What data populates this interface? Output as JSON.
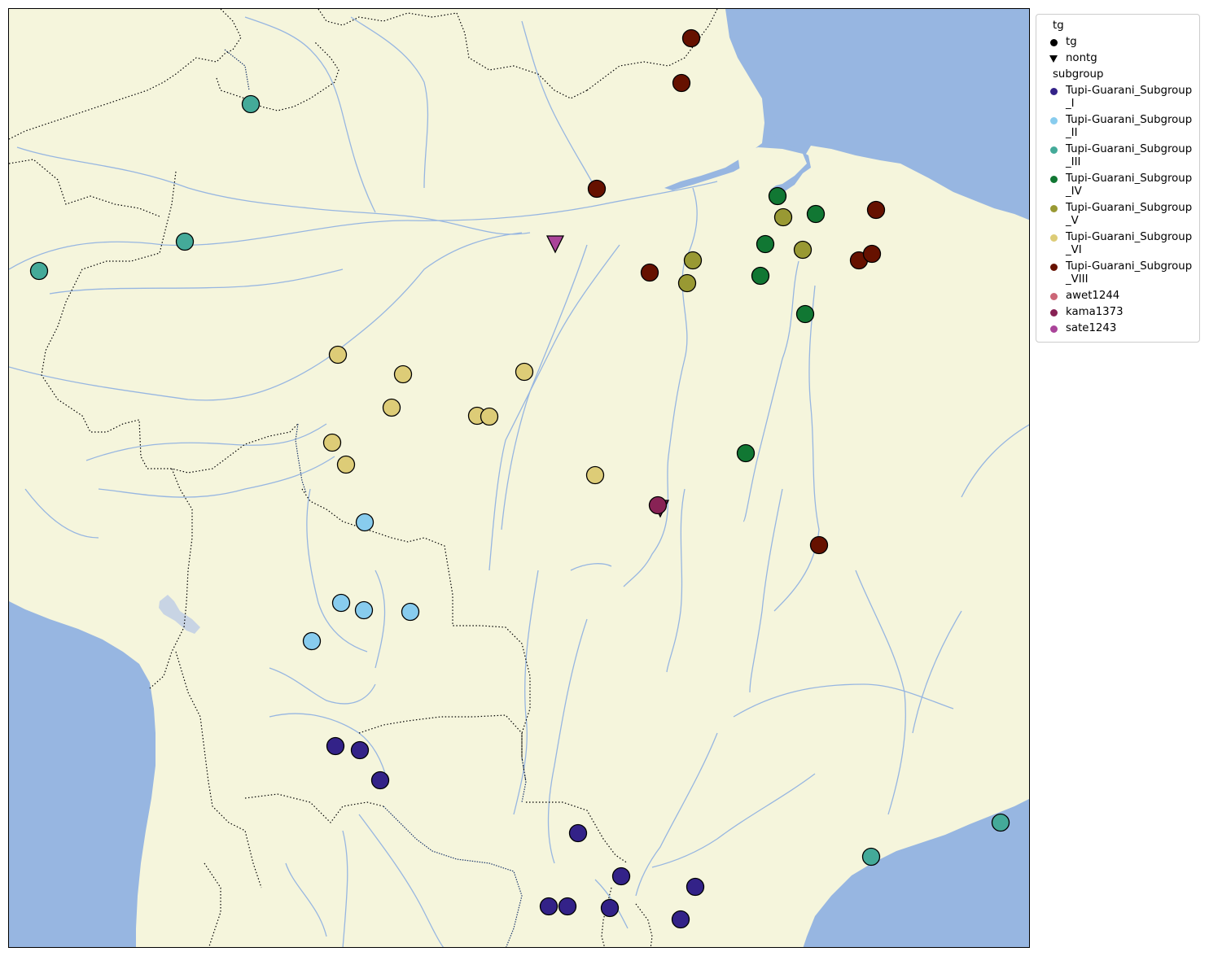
{
  "colors": {
    "land": "#f5f5dc",
    "water": "#97b6e1",
    "lake": "#c8d4e4",
    "river": "#97b6e1",
    "border": "#000000"
  },
  "legend": {
    "marker_header": "tg",
    "markers": [
      {
        "label": "tg",
        "shape": "circle"
      },
      {
        "label": "nontg",
        "shape": "triangle"
      }
    ],
    "subgroup_header": "subgroup",
    "subgroups": [
      {
        "label": "Tupi-Guarani_Subgroup_I",
        "color": "#332288"
      },
      {
        "label": "Tupi-Guarani_Subgroup_II",
        "color": "#88ccee"
      },
      {
        "label": "Tupi-Guarani_Subgroup_III",
        "color": "#44aa99"
      },
      {
        "label": "Tupi-Guarani_Subgroup_IV",
        "color": "#117733"
      },
      {
        "label": "Tupi-Guarani_Subgroup_V",
        "color": "#999933"
      },
      {
        "label": "Tupi-Guarani_Subgroup_VI",
        "color": "#ddcc77"
      },
      {
        "label": "Tupi-Guarani_Subgroup_VIII",
        "color": "#661100"
      },
      {
        "label": "awet1244",
        "color": "#cc6677"
      },
      {
        "label": "kama1373",
        "color": "#882255"
      },
      {
        "label": "sate1243",
        "color": "#aa4499"
      }
    ]
  }
}
